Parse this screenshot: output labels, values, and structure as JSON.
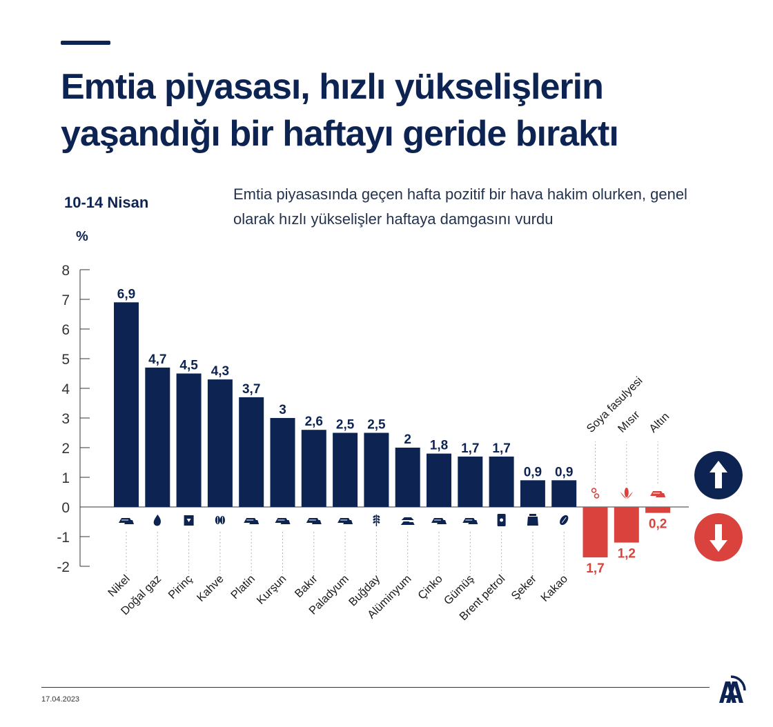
{
  "header": {
    "title_line1": "Emtia piyasası, hızlı yükselişlerin",
    "title_line2": "yaşandığı bir haftayı geride bıraktı",
    "period": "10-14 Nisan",
    "subtitle": "Emtia piyasasında geçen hafta pozitif bir hava hakim olurken, genel olarak hızlı yükselişler haftaya damgasını vurdu",
    "unit": "%"
  },
  "colors": {
    "rise": "#0d2452",
    "fall": "#d9423d",
    "text": "#0d2452"
  },
  "chart_data": {
    "type": "bar",
    "ylabel": "%",
    "ylim": [
      -2,
      8
    ],
    "yticks": [
      8,
      7,
      6,
      5,
      4,
      3,
      2,
      1,
      0,
      -1,
      -2
    ],
    "categories": [
      "Nikel",
      "Doğal gaz",
      "Pirinç",
      "Kahve",
      "Platin",
      "Kurşun",
      "Bakır",
      "Paladyum",
      "Buğday",
      "Alüminyum",
      "Çinko",
      "Gümüş",
      "Brent petrol",
      "Şeker",
      "Kakao",
      "Soya fasulyesi",
      "Mısır",
      "Altın"
    ],
    "values": [
      6.9,
      4.7,
      4.5,
      4.3,
      3.7,
      3.0,
      2.6,
      2.5,
      2.5,
      2.0,
      1.8,
      1.7,
      1.7,
      0.9,
      0.9,
      -1.7,
      -1.2,
      -0.2
    ],
    "value_labels": [
      "6,9",
      "4,7",
      "4,5",
      "4,3",
      "3,7",
      "3",
      "2,6",
      "2,5",
      "2,5",
      "2",
      "1,8",
      "1,7",
      "1,7",
      "0,9",
      "0,9",
      "1,7",
      "1,2",
      "0,2"
    ],
    "icons": [
      "ingot-icon",
      "flame-icon",
      "rice-sack-icon",
      "coffee-bean-icon",
      "ingot-icon",
      "ingot-icon",
      "ingot-icon",
      "ingot-icon",
      "wheat-icon",
      "ingot-stack-icon",
      "ingot-icon",
      "ingot-icon",
      "oil-barrel-icon",
      "sugar-sack-icon",
      "cocoa-icon",
      "soybean-icon",
      "corn-icon",
      "gold-bar-icon"
    ]
  },
  "legend": {
    "up_icon": "arrow-up-icon",
    "down_icon": "arrow-down-icon"
  },
  "footer": {
    "date": "17.04.2023",
    "logo_text": "AA"
  }
}
